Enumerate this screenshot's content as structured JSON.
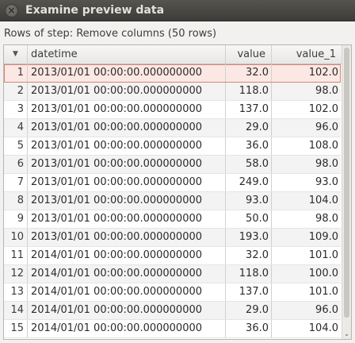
{
  "window": {
    "title": "Examine preview data",
    "close_icon": "×"
  },
  "caption": "Rows of step: Remove columns (50 rows)",
  "table": {
    "sort_indicator": "▼",
    "columns": [
      "datetime",
      "value",
      "value_1"
    ],
    "rows": [
      {
        "idx": "1",
        "datetime": "2013/01/01 00:00:00.000000000",
        "value": "32.0",
        "value_1": "102.0"
      },
      {
        "idx": "2",
        "datetime": "2013/01/01 00:00:00.000000000",
        "value": "118.0",
        "value_1": "98.0"
      },
      {
        "idx": "3",
        "datetime": "2013/01/01 00:00:00.000000000",
        "value": "137.0",
        "value_1": "102.0"
      },
      {
        "idx": "4",
        "datetime": "2013/01/01 00:00:00.000000000",
        "value": "29.0",
        "value_1": "96.0"
      },
      {
        "idx": "5",
        "datetime": "2013/01/01 00:00:00.000000000",
        "value": "36.0",
        "value_1": "108.0"
      },
      {
        "idx": "6",
        "datetime": "2013/01/01 00:00:00.000000000",
        "value": "58.0",
        "value_1": "98.0"
      },
      {
        "idx": "7",
        "datetime": "2013/01/01 00:00:00.000000000",
        "value": "249.0",
        "value_1": "93.0"
      },
      {
        "idx": "8",
        "datetime": "2013/01/01 00:00:00.000000000",
        "value": "93.0",
        "value_1": "104.0"
      },
      {
        "idx": "9",
        "datetime": "2013/01/01 00:00:00.000000000",
        "value": "50.0",
        "value_1": "98.0"
      },
      {
        "idx": "10",
        "datetime": "2013/01/01 00:00:00.000000000",
        "value": "193.0",
        "value_1": "109.0"
      },
      {
        "idx": "11",
        "datetime": "2014/01/01 00:00:00.000000000",
        "value": "32.0",
        "value_1": "101.0"
      },
      {
        "idx": "12",
        "datetime": "2014/01/01 00:00:00.000000000",
        "value": "118.0",
        "value_1": "100.0"
      },
      {
        "idx": "13",
        "datetime": "2014/01/01 00:00:00.000000000",
        "value": "137.0",
        "value_1": "101.0"
      },
      {
        "idx": "14",
        "datetime": "2014/01/01 00:00:00.000000000",
        "value": "29.0",
        "value_1": "96.0"
      },
      {
        "idx": "15",
        "datetime": "2014/01/01 00:00:00.000000000",
        "value": "36.0",
        "value_1": "104.0"
      }
    ]
  },
  "colors": {
    "selected_row": "#fbe8e4",
    "selected_border": "#d2867a",
    "titlebar": "#3d3c38"
  }
}
